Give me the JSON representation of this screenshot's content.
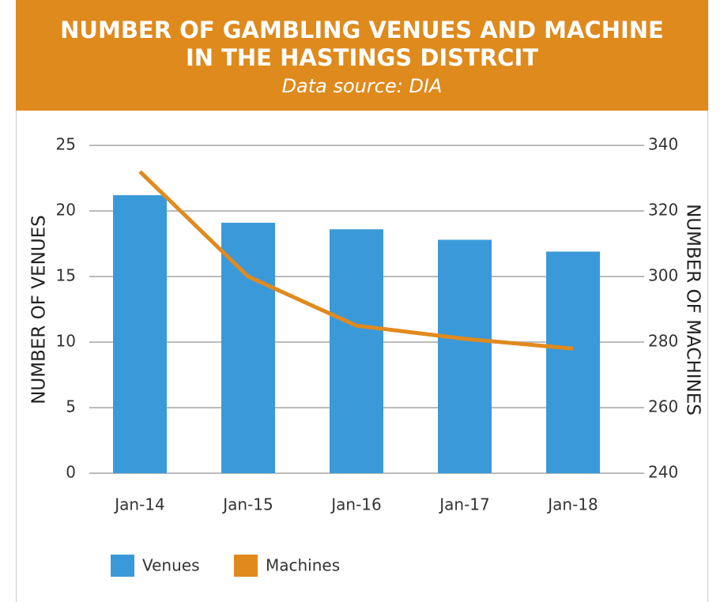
{
  "chart_data": {
    "type": "bar-line",
    "title": "NUMBER OF GAMBLING VENUES AND MACHINE",
    "title_line2": "IN THE HASTINGS DISTRCIT",
    "subtitle": "Data source: DIA",
    "y_label": "NUMBER OF VENUES",
    "y2_label": "NUMBER OF MACHINES",
    "categories": [
      "Jan-14",
      "Jan-15",
      "Jan-16",
      "Jan-17",
      "Jan-18"
    ],
    "series": [
      {
        "name": "Venues",
        "type": "bar",
        "color": "#3a9ad9",
        "values": [
          21.2,
          19.1,
          18.6,
          17.8,
          16.9
        ]
      },
      {
        "name": "Machines",
        "type": "line",
        "axis": "y2",
        "color": "#e08a1e",
        "values": [
          332,
          300,
          285,
          281,
          278
        ]
      }
    ],
    "ylim": [
      0,
      25
    ],
    "yticks": [
      0,
      5,
      10,
      15,
      20,
      25
    ],
    "y2lim": [
      240,
      340
    ],
    "y2ticks": [
      240,
      260,
      280,
      300,
      320,
      340
    ],
    "grid": true,
    "legend": "bottom-left"
  }
}
